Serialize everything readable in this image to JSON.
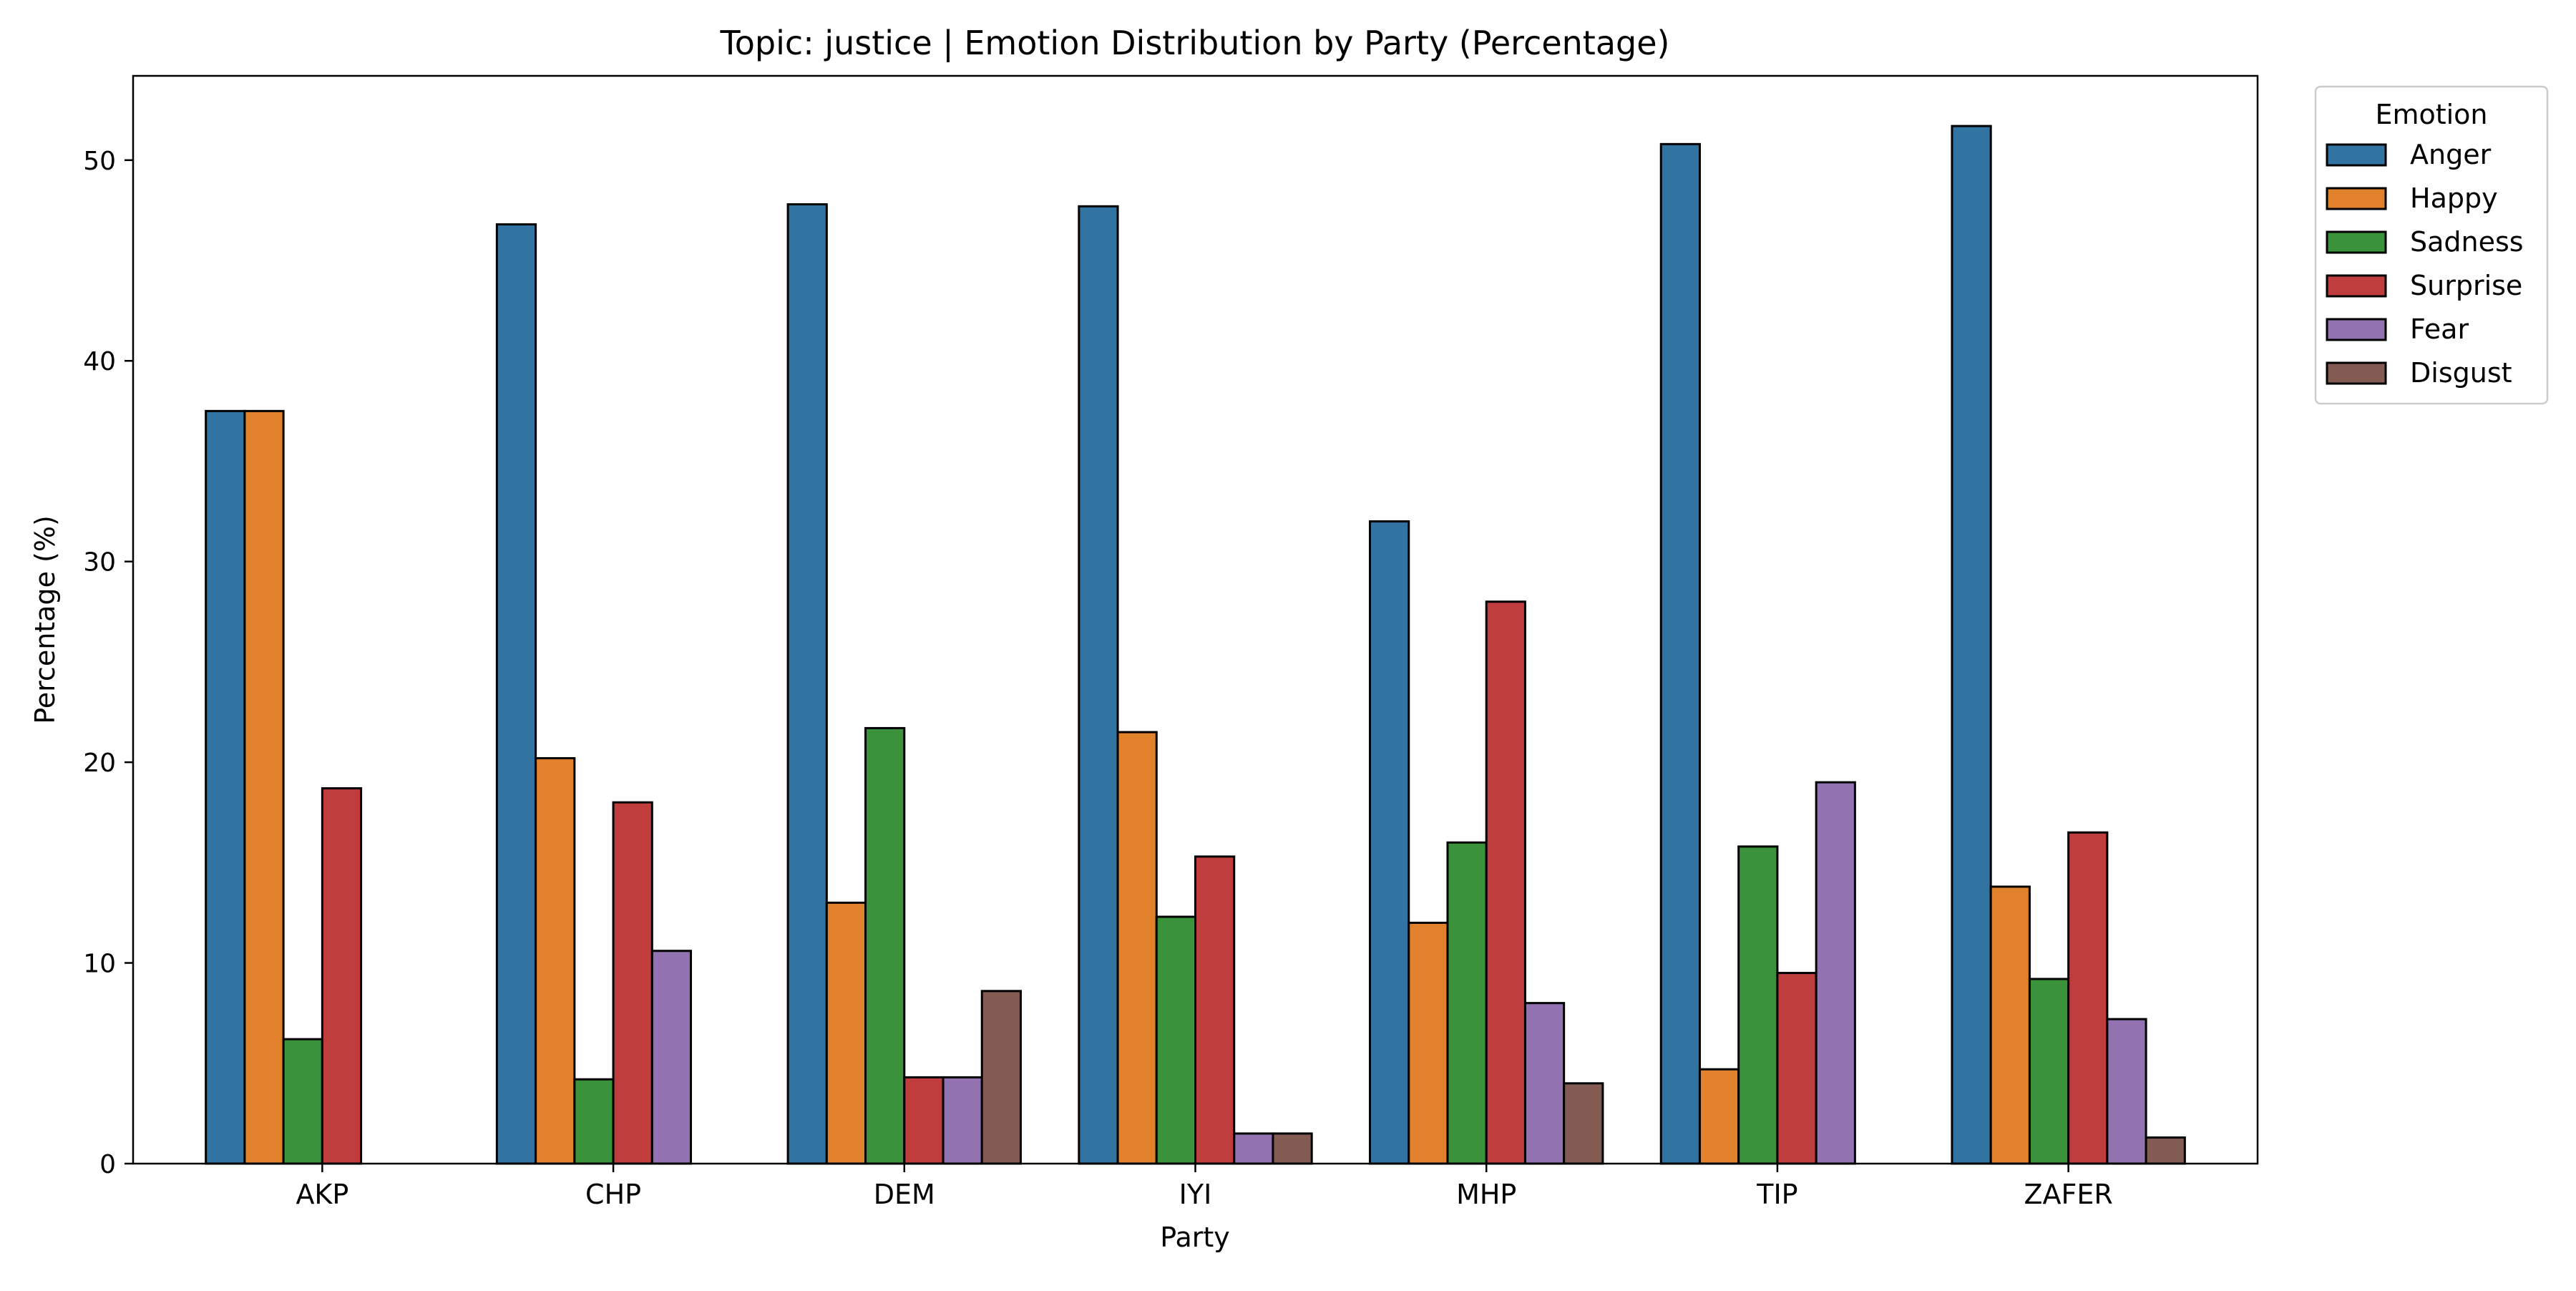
{
  "chart_data": {
    "type": "bar",
    "title": "Topic: justice | Emotion Distribution by Party (Percentage)",
    "xlabel": "Party",
    "ylabel": "Percentage (%)",
    "ylim": [
      0,
      54.2
    ],
    "yticks": [
      "0",
      "10",
      "20",
      "30",
      "40",
      "50"
    ],
    "grid": false,
    "legend": {
      "title": "Emotion",
      "placement": "outside-top-right"
    },
    "categories": [
      "AKP",
      "CHP",
      "DEM",
      "IYI",
      "MHP",
      "TIP",
      "ZAFER"
    ],
    "series": [
      {
        "name": "Anger",
        "color": "#3274a1",
        "values": [
          37.5,
          46.8,
          47.8,
          47.7,
          32.0,
          50.8,
          51.7
        ]
      },
      {
        "name": "Happy",
        "color": "#e1812c",
        "values": [
          37.5,
          20.2,
          13.0,
          21.5,
          12.0,
          4.7,
          13.8
        ]
      },
      {
        "name": "Sadness",
        "color": "#3a923a",
        "values": [
          6.2,
          4.2,
          21.7,
          12.3,
          16.0,
          15.8,
          9.2
        ]
      },
      {
        "name": "Surprise",
        "color": "#c03d3e",
        "values": [
          18.7,
          18.0,
          4.3,
          15.3,
          28.0,
          9.5,
          16.5
        ]
      },
      {
        "name": "Fear",
        "color": "#9372b2",
        "values": [
          0,
          10.6,
          4.3,
          1.5,
          8.0,
          19.0,
          7.2
        ]
      },
      {
        "name": "Disgust",
        "color": "#845b53",
        "values": [
          0,
          0,
          8.6,
          1.5,
          4.0,
          0,
          1.3
        ]
      }
    ]
  }
}
